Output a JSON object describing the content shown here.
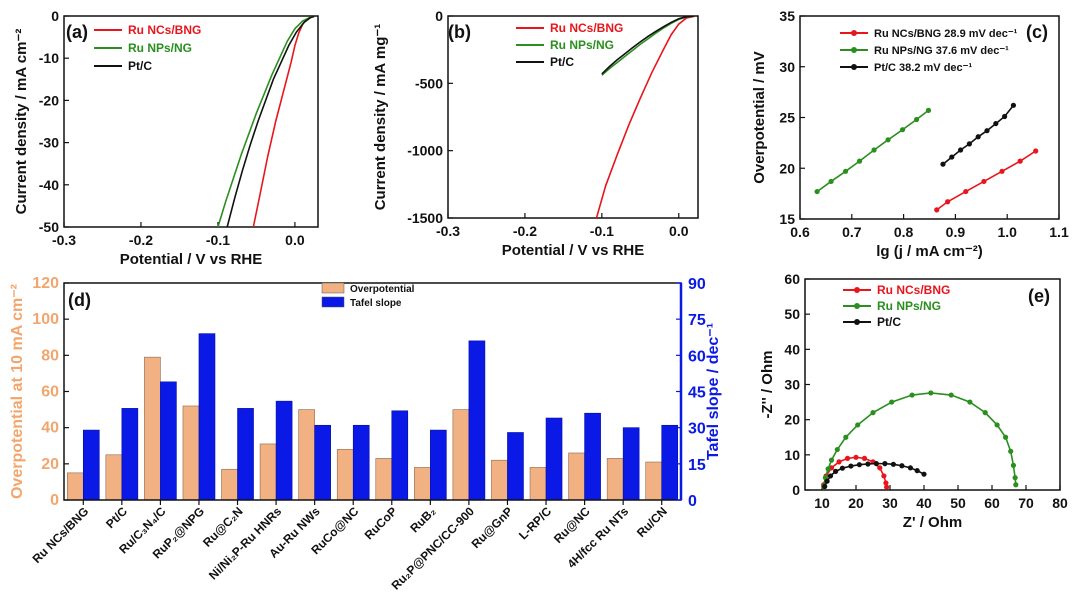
{
  "chart_data": [
    {
      "panel": "(a)",
      "type": "line",
      "xlabel": "Potential / V vs RHE",
      "ylabel": "Current density / mA cm⁻²",
      "xlim": [
        -0.3,
        0.03
      ],
      "ylim": [
        -50,
        0
      ],
      "xticks": [
        "-0.3",
        "-0.2",
        "-0.1",
        "0.0"
      ],
      "yticks": [
        "0",
        "-10",
        "-20",
        "-30",
        "-40",
        "-50"
      ],
      "legend_position": "top-right",
      "series": [
        {
          "name": "Ru NCs/BNG",
          "color": "#e8161c",
          "x": [
            -0.054,
            -0.045,
            -0.035,
            -0.025,
            -0.015,
            -0.005,
            0.0,
            0.005,
            0.01,
            0.015,
            0.02,
            0.025
          ],
          "y": [
            -50,
            -42,
            -33,
            -25,
            -18,
            -11,
            -7,
            -4,
            -2,
            -0.8,
            -0.3,
            -0.1
          ]
        },
        {
          "name": "Ru NPs/NG",
          "color": "#2a8f1e",
          "x": [
            -0.1,
            -0.09,
            -0.08,
            -0.07,
            -0.06,
            -0.05,
            -0.04,
            -0.03,
            -0.02,
            -0.01,
            0.0,
            0.01,
            0.02,
            0.025
          ],
          "y": [
            -50,
            -44,
            -38.5,
            -33,
            -28,
            -23,
            -18.5,
            -14,
            -10,
            -6,
            -3,
            -1.2,
            -0.3,
            -0.1
          ]
        },
        {
          "name": "Pt/C",
          "color": "#111111",
          "x": [
            -0.088,
            -0.078,
            -0.068,
            -0.058,
            -0.048,
            -0.038,
            -0.028,
            -0.018,
            -0.008,
            0.002,
            0.012,
            0.02,
            0.025
          ],
          "y": [
            -50,
            -43,
            -36.5,
            -30.5,
            -25,
            -20,
            -15,
            -11,
            -7,
            -3.8,
            -1.5,
            -0.4,
            -0.1
          ]
        }
      ]
    },
    {
      "panel": "(b)",
      "type": "line",
      "xlabel": "Potential / V vs RHE",
      "ylabel": "Current density / mA mg⁻¹",
      "xlim": [
        -0.3,
        0.025
      ],
      "ylim": [
        -1500,
        0
      ],
      "xticks": [
        "-0.3",
        "-0.2",
        "-0.1",
        "0.0"
      ],
      "yticks": [
        "0",
        "-500",
        "-1000",
        "-1500"
      ],
      "legend_position": "top-right",
      "series": [
        {
          "name": "Ru NCs/BNG",
          "color": "#e8161c",
          "x": [
            -0.107,
            -0.095,
            -0.08,
            -0.065,
            -0.05,
            -0.035,
            -0.02,
            -0.01,
            0.0,
            0.01,
            0.02
          ],
          "y": [
            -1500,
            -1260,
            -1030,
            -810,
            -610,
            -420,
            -250,
            -140,
            -60,
            -15,
            -3
          ]
        },
        {
          "name": "Ru NPs/NG",
          "color": "#2a8f1e",
          "x": [
            -0.1,
            -0.09,
            -0.08,
            -0.07,
            -0.06,
            -0.05,
            -0.04,
            -0.03,
            -0.02,
            -0.01,
            0.0,
            0.01,
            0.02
          ],
          "y": [
            -440,
            -390,
            -345,
            -300,
            -255,
            -210,
            -170,
            -128,
            -90,
            -55,
            -25,
            -7,
            -1
          ]
        },
        {
          "name": "Pt/C",
          "color": "#111111",
          "x": [
            -0.1,
            -0.09,
            -0.08,
            -0.07,
            -0.06,
            -0.05,
            -0.04,
            -0.03,
            -0.02,
            -0.01,
            0.0,
            0.01,
            0.02
          ],
          "y": [
            -430,
            -375,
            -325,
            -280,
            -235,
            -192,
            -152,
            -115,
            -80,
            -48,
            -20,
            -5,
            -1
          ]
        }
      ]
    },
    {
      "panel": "(c)",
      "type": "scatter",
      "xlabel": "lg (j / mA cm⁻²)",
      "ylabel": "Overpotential / mV",
      "xlim": [
        0.6,
        1.1
      ],
      "ylim": [
        15,
        35
      ],
      "xticks": [
        "0.6",
        "0.7",
        "0.8",
        "0.9",
        "1.0",
        "1.1"
      ],
      "yticks": [
        "15",
        "20",
        "25",
        "30",
        "35"
      ],
      "legend_position": "top-right",
      "series": [
        {
          "name": "Ru NCs/BNG 28.9 mV dec⁻¹",
          "color": "#e8161c",
          "x": [
            0.864,
            0.885,
            0.92,
            0.955,
            0.99,
            1.025,
            1.055
          ],
          "y": [
            15.9,
            16.7,
            17.7,
            18.7,
            19.7,
            20.7,
            21.7
          ]
        },
        {
          "name": "Ru NPs/NG 37.6 mV dec⁻¹",
          "color": "#2a8f1e",
          "x": [
            0.633,
            0.66,
            0.688,
            0.715,
            0.743,
            0.77,
            0.798,
            0.825,
            0.848
          ],
          "y": [
            17.7,
            18.7,
            19.7,
            20.7,
            21.8,
            22.8,
            23.8,
            24.8,
            25.7
          ]
        },
        {
          "name": "Pt/C 38.2 mV dec⁻¹",
          "color": "#111111",
          "x": [
            0.876,
            0.893,
            0.91,
            0.927,
            0.944,
            0.961,
            0.978,
            0.995,
            1.012
          ],
          "y": [
            20.4,
            21.1,
            21.8,
            22.4,
            23.1,
            23.7,
            24.4,
            25.1,
            26.2
          ]
        }
      ]
    },
    {
      "panel": "(d)",
      "type": "bar",
      "ylabel": "Overpotential at 10 mA cm⁻²",
      "y2label": "Tafel slope / dec⁻¹",
      "ylim": [
        0,
        120
      ],
      "y2lim": [
        0,
        90
      ],
      "yticks": [
        "0",
        "20",
        "40",
        "60",
        "80",
        "100",
        "120"
      ],
      "y2ticks": [
        "0",
        "15",
        "30",
        "45",
        "60",
        "75",
        "90"
      ],
      "legend_position": "top-center",
      "categories": [
        "Ru NCs/BNG",
        "Pt/C",
        "Ru/C₃N₄/C",
        "RuP₂@NPG",
        "Ru@C₂N",
        "Ni/Ni₂P-Ru HNRs",
        "Au-Ru NWs",
        "RuCo@NC",
        "RuCoP",
        "RuB₂",
        "Ru₂P@PNC/CC-900",
        "Ru@GnP",
        "L-RP/C",
        "Ru@NC",
        "4H/fcc Ru NTs",
        "Ru/CN"
      ],
      "series": [
        {
          "name": "Overpotential",
          "color": "#f2b183",
          "axis": "left",
          "values": [
            15,
            25,
            79,
            52,
            17,
            31,
            50,
            28,
            23,
            18,
            50,
            22,
            18,
            26,
            23,
            21
          ]
        },
        {
          "name": "Tafel slope",
          "color": "#0a19e6",
          "axis": "right",
          "values": [
            29,
            38,
            49,
            69,
            38,
            41,
            31,
            31,
            37,
            29,
            66,
            28,
            34,
            36,
            30,
            31
          ]
        }
      ]
    },
    {
      "panel": "(e)",
      "type": "scatter",
      "xlabel": "Z' / Ohm",
      "ylabel": "-Z'' / Ohm",
      "xlim": [
        5,
        80
      ],
      "ylim": [
        0,
        60
      ],
      "xticks": [
        "10",
        "20",
        "30",
        "40",
        "50",
        "60",
        "70",
        "80"
      ],
      "yticks": [
        "0",
        "10",
        "20",
        "30",
        "40",
        "50",
        "60"
      ],
      "legend_position": "top-center",
      "series": [
        {
          "name": "Ru NCs/BNG",
          "color": "#e8161c",
          "x": [
            10.5,
            11.2,
            12.8,
            15.0,
            17.5,
            20.0,
            22.5,
            25.0,
            27.0,
            28.2,
            28.8,
            29.0
          ],
          "y": [
            1.5,
            4.0,
            6.3,
            8.0,
            9.0,
            9.3,
            9.0,
            8.0,
            6.3,
            4.0,
            2.0,
            0.8
          ]
        },
        {
          "name": "Ru NPs/NG",
          "color": "#2a8f1e",
          "x": [
            10.5,
            11.0,
            11.8,
            12.8,
            14.5,
            17.0,
            20.5,
            25.0,
            30.5,
            36.5,
            42.0,
            48.0,
            53.5,
            58.0,
            61.5,
            64.0,
            65.5,
            66.3,
            66.8,
            67.0
          ],
          "y": [
            1.0,
            3.5,
            6.0,
            8.5,
            11.5,
            15.0,
            18.5,
            22.0,
            25.0,
            27.0,
            27.6,
            27.0,
            25.0,
            22.0,
            18.5,
            15.0,
            11.0,
            7.0,
            3.5,
            1.5
          ]
        },
        {
          "name": "Pt/C",
          "color": "#111111",
          "x": [
            10.8,
            11.5,
            12.5,
            14.0,
            16.0,
            18.5,
            21.0,
            23.5,
            26.0,
            28.5,
            31.0,
            33.5,
            36.0,
            38.0,
            40.0
          ],
          "y": [
            1.0,
            2.5,
            4.0,
            5.3,
            6.2,
            6.8,
            7.2,
            7.4,
            7.5,
            7.5,
            7.3,
            6.9,
            6.3,
            5.5,
            4.5
          ]
        }
      ]
    }
  ]
}
